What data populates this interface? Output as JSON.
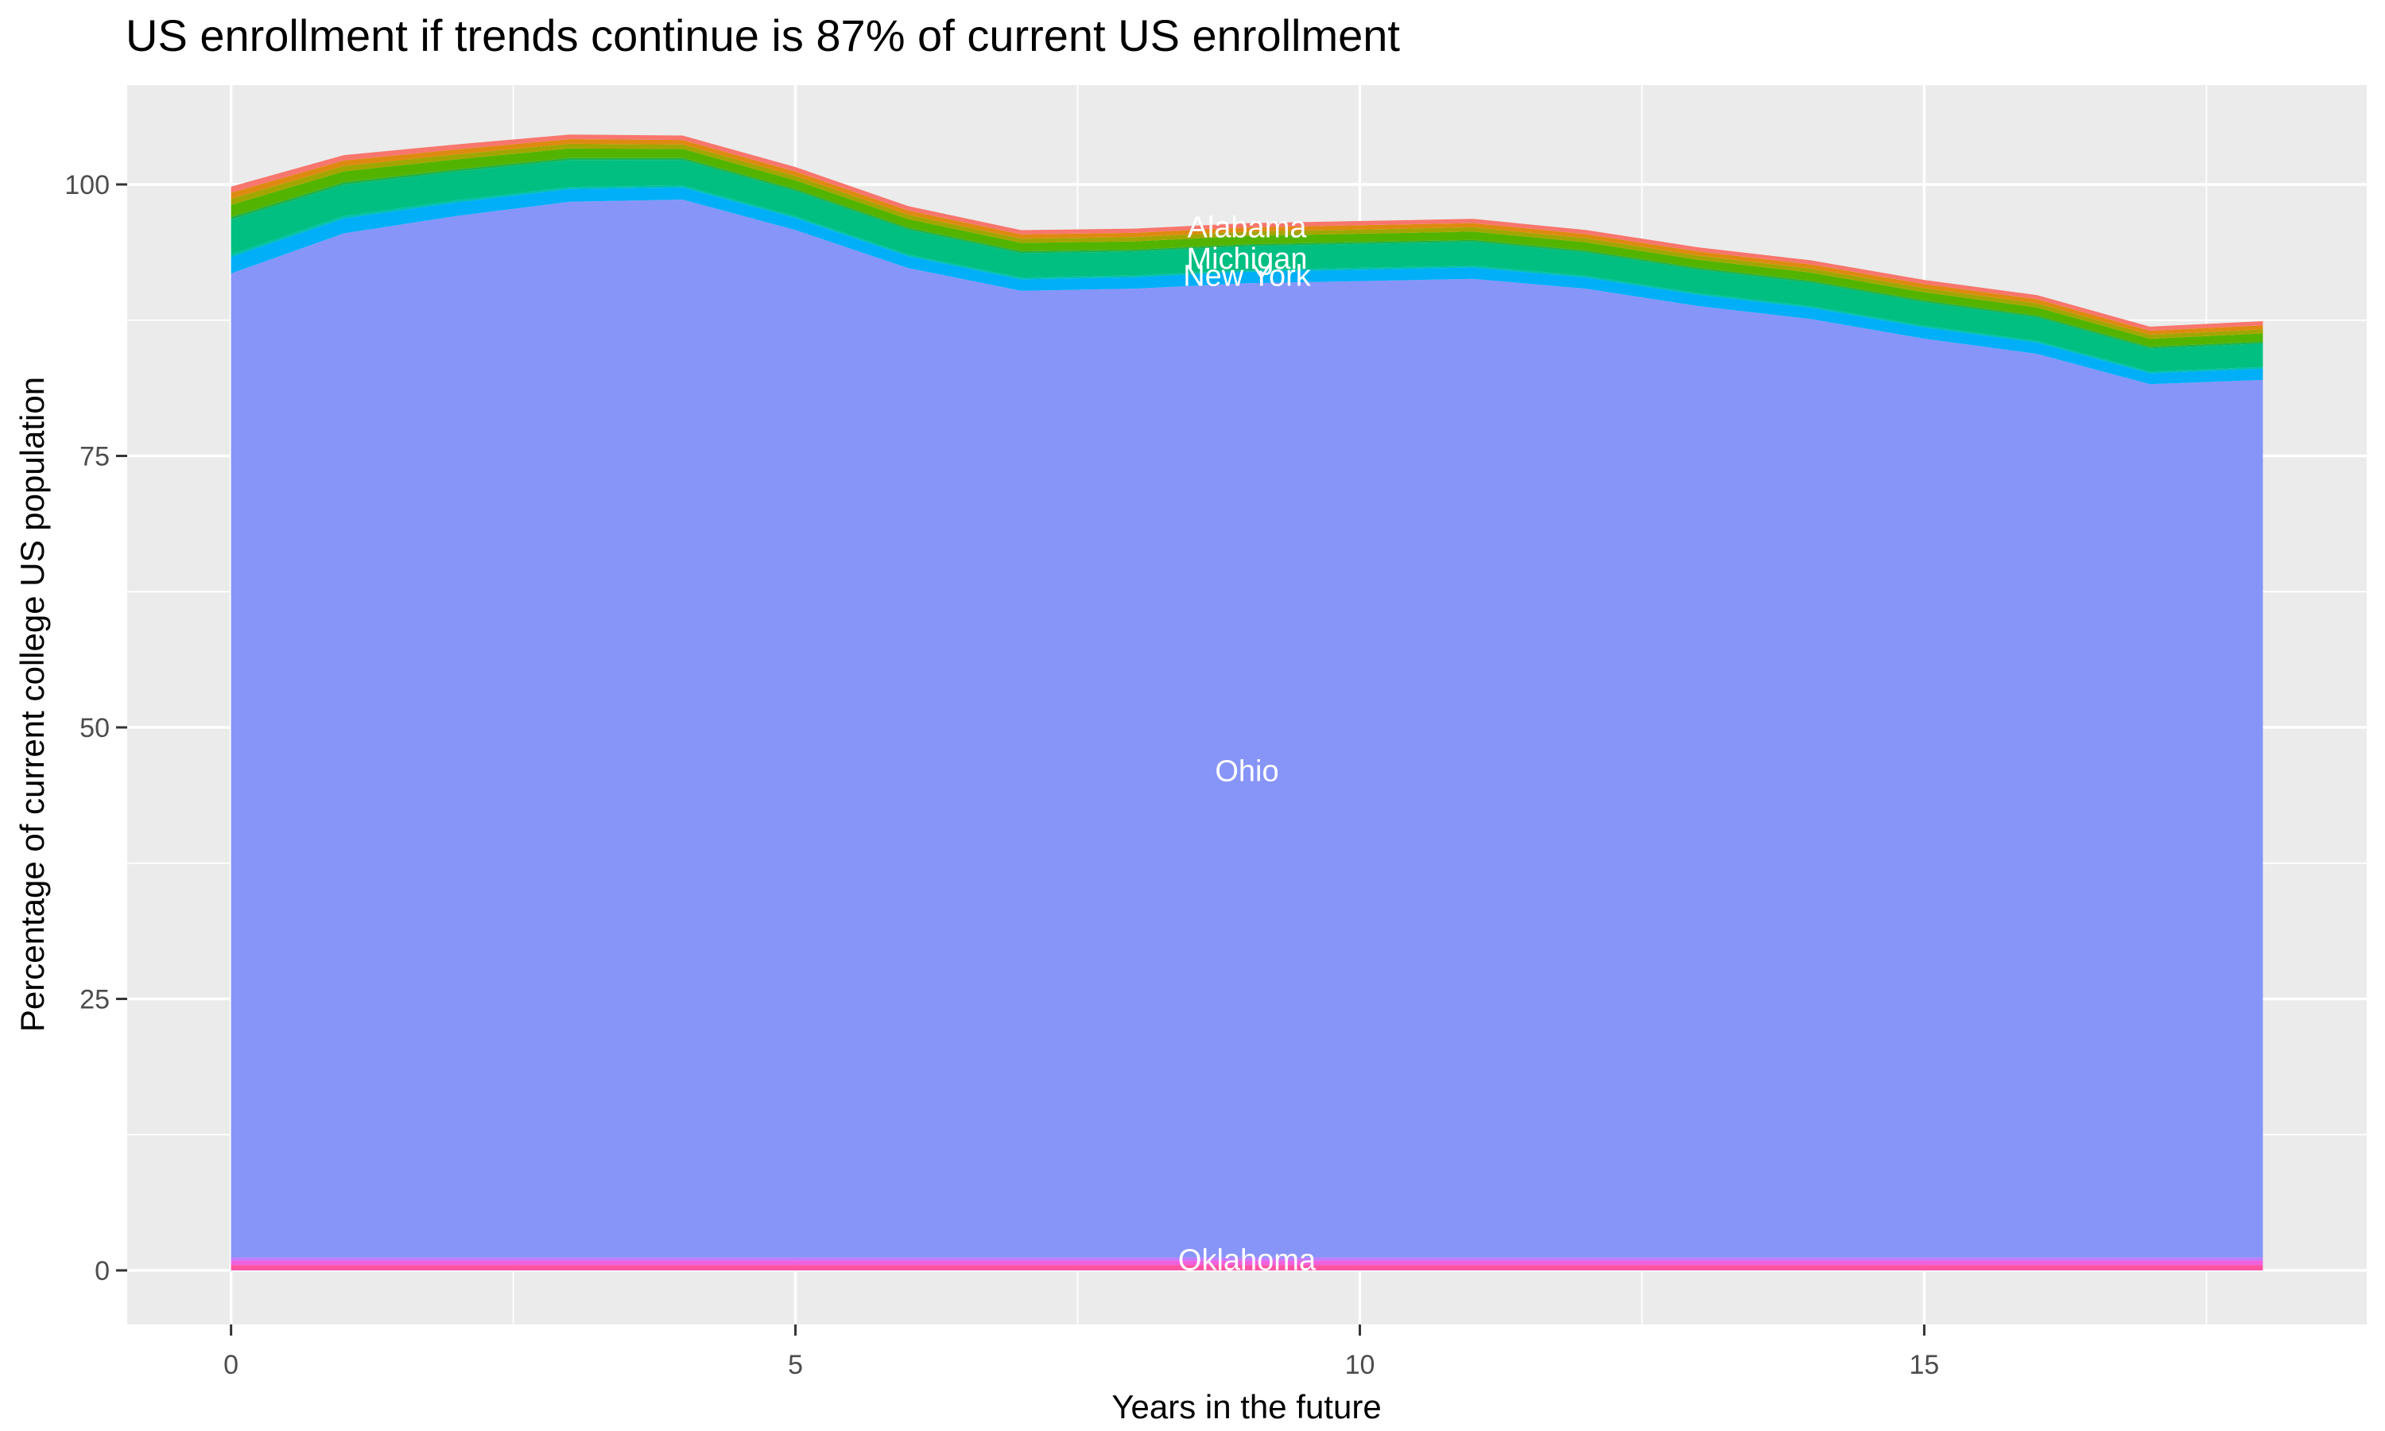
{
  "chart_data": {
    "type": "area",
    "stacked": true,
    "title": "US enrollment if trends continue is 87% of current US enrollment",
    "xlabel": "Years in the future",
    "ylabel": "Percentage of current college US population",
    "x": [
      0,
      1,
      2,
      3,
      4,
      5,
      6,
      7,
      8,
      9,
      10,
      11,
      12,
      13,
      14,
      15,
      16,
      17,
      18
    ],
    "xlim": [
      -0.92,
      18.92
    ],
    "ylim": [
      -4.98,
      109.15
    ],
    "x_major": [
      0,
      5,
      10,
      15
    ],
    "x_tick_labels": [
      "0",
      "5",
      "10",
      "15"
    ],
    "x_minor": [
      2.5,
      7.5,
      12.5,
      17.5
    ],
    "y_major": [
      0,
      25,
      50,
      75,
      100
    ],
    "y_tick_labels": [
      "0",
      "25",
      "50",
      "75",
      "100"
    ],
    "y_minor": [
      12.5,
      37.5,
      62.5,
      87.5
    ],
    "grid": true,
    "legend": "none",
    "total_top_edge": [
      99.8,
      102.7,
      103.7,
      104.6,
      104.5,
      101.6,
      98.0,
      95.8,
      95.9,
      96.4,
      96.6,
      96.8,
      95.8,
      94.2,
      93.0,
      91.2,
      89.8,
      86.9,
      87.4
    ],
    "series": [
      {
        "name": "Oklahoma",
        "color": "#FF53A2",
        "values": [
          0.5,
          0.5,
          0.5,
          0.5,
          0.5,
          0.5,
          0.5,
          0.5,
          0.5,
          0.5,
          0.5,
          0.5,
          0.5,
          0.5,
          0.5,
          0.5,
          0.5,
          0.5,
          0.5
        ]
      },
      {
        "name": null,
        "color": "#EF61DF",
        "values": [
          0.42,
          0.42,
          0.42,
          0.42,
          0.42,
          0.42,
          0.42,
          0.42,
          0.42,
          0.42,
          0.42,
          0.42,
          0.42,
          0.42,
          0.42,
          0.42,
          0.42,
          0.42,
          0.42
        ]
      },
      {
        "name": null,
        "color": "#BC7EFF",
        "values": [
          0.28,
          0.28,
          0.28,
          0.28,
          0.28,
          0.28,
          0.28,
          0.28,
          0.28,
          0.28,
          0.28,
          0.28,
          0.28,
          0.28,
          0.28,
          0.28,
          0.28,
          0.28,
          0.28
        ]
      },
      {
        "name": "Ohio",
        "color": "#8795F8",
        "values": [
          90.6,
          94.3,
          95.9,
          97.2,
          97.4,
          94.6,
          91.1,
          89.0,
          89.2,
          89.7,
          89.9,
          90.1,
          89.2,
          87.6,
          86.4,
          84.6,
          83.2,
          80.4,
          80.8
        ]
      },
      {
        "name": "New York",
        "color": "#00AFF8",
        "values": [
          1.52,
          1.37,
          1.25,
          1.18,
          1.12,
          1.1,
          1.08,
          1.06,
          1.05,
          1.05,
          1.05,
          1.05,
          1.03,
          1.03,
          1.03,
          1.03,
          1.03,
          1.01,
          1.03
        ]
      },
      {
        "name": null,
        "color": "#00C0AF",
        "values": [
          0.24,
          0.22,
          0.2,
          0.19,
          0.18,
          0.17,
          0.17,
          0.17,
          0.17,
          0.17,
          0.17,
          0.17,
          0.16,
          0.16,
          0.16,
          0.16,
          0.16,
          0.16,
          0.16
        ]
      },
      {
        "name": "Michigan",
        "color": "#00BF81",
        "values": [
          3.2,
          2.88,
          2.64,
          2.48,
          2.36,
          2.32,
          2.28,
          2.24,
          2.2,
          2.2,
          2.2,
          2.2,
          2.16,
          2.16,
          2.16,
          2.16,
          2.16,
          2.12,
          2.16
        ]
      },
      {
        "name": null,
        "color": "#1CB24B",
        "values": [
          0.24,
          0.22,
          0.2,
          0.19,
          0.18,
          0.17,
          0.17,
          0.17,
          0.17,
          0.17,
          0.17,
          0.17,
          0.16,
          0.16,
          0.16,
          0.16,
          0.16,
          0.16,
          0.16
        ]
      },
      {
        "name": null,
        "color": "#53B400",
        "values": [
          1.12,
          1.01,
          0.92,
          0.87,
          0.83,
          0.81,
          0.8,
          0.78,
          0.77,
          0.77,
          0.77,
          0.77,
          0.76,
          0.76,
          0.76,
          0.76,
          0.76,
          0.74,
          0.76
        ]
      },
      {
        "name": null,
        "color": "#A3A500",
        "values": [
          0.56,
          0.5,
          0.46,
          0.43,
          0.41,
          0.41,
          0.4,
          0.39,
          0.39,
          0.39,
          0.39,
          0.39,
          0.38,
          0.38,
          0.38,
          0.38,
          0.38,
          0.37,
          0.38
        ]
      },
      {
        "name": null,
        "color": "#DE8A10",
        "values": [
          0.56,
          0.5,
          0.46,
          0.43,
          0.41,
          0.41,
          0.4,
          0.39,
          0.39,
          0.39,
          0.39,
          0.39,
          0.38,
          0.38,
          0.38,
          0.38,
          0.38,
          0.37,
          0.38
        ]
      },
      {
        "name": "Alabama",
        "color": "#F8766D",
        "values": [
          0.56,
          0.5,
          0.46,
          0.43,
          0.41,
          0.41,
          0.4,
          0.39,
          0.39,
          0.39,
          0.39,
          0.39,
          0.38,
          0.38,
          0.38,
          0.38,
          0.38,
          0.37,
          0.38
        ]
      }
    ],
    "labels": [
      {
        "text": "Alabama",
        "x": 9,
        "y": 96.1
      },
      {
        "text": "Michigan",
        "x": 9,
        "y": 93.2
      },
      {
        "text": "New York",
        "x": 9,
        "y": 91.6
      },
      {
        "text": "Ohio",
        "x": 9,
        "y": 46.0
      },
      {
        "text": "Oklahoma",
        "x": 9,
        "y": 1.0
      }
    ],
    "colors": {
      "panel": "#EBEBEB",
      "grid": "#FFFFFF",
      "tick_mark": "#333333",
      "tick_text": "#4D4D4D",
      "title_text": "#000000",
      "band_label_text": "#FFFFFF"
    }
  }
}
